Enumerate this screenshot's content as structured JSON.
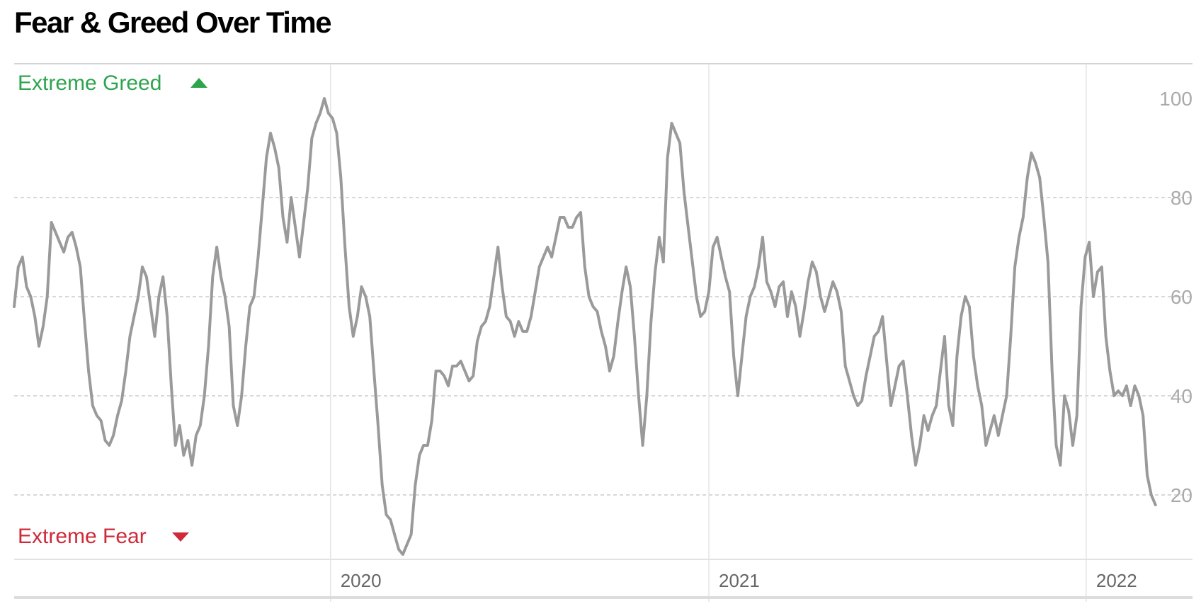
{
  "title": "Fear & Greed Over Time",
  "chart_data": {
    "type": "line",
    "title": "Fear & Greed Over Time",
    "xlabel": "",
    "ylabel": "",
    "ylim": [
      7,
      107
    ],
    "xlim": [
      "2019-03-01",
      "2022-03-01"
    ],
    "y_ticks": [
      "100",
      "80",
      "60",
      "40",
      "20"
    ],
    "x_ticks": [
      {
        "label": "2020",
        "date": "2020-01-01"
      },
      {
        "label": "2021",
        "date": "2021-01-01"
      },
      {
        "label": "2022",
        "date": "2022-01-01"
      }
    ],
    "grid": {
      "horizontal": "dashed",
      "vertical": "solid"
    },
    "annotations": {
      "top": "Extreme Greed",
      "bottom": "Extreme Fear"
    },
    "colors": {
      "line": "#9a9a9a",
      "greed": "#2da44e",
      "fear": "#cf2a3a",
      "grid": "#cccccc",
      "tick": "#aaaaaa"
    },
    "series": [
      {
        "values": [
          [
            "2019-03-01",
            58
          ],
          [
            "2019-03-05",
            66
          ],
          [
            "2019-03-09",
            68
          ],
          [
            "2019-03-13",
            62
          ],
          [
            "2019-03-17",
            60
          ],
          [
            "2019-03-21",
            56
          ],
          [
            "2019-03-25",
            50
          ],
          [
            "2019-03-29",
            54
          ],
          [
            "2019-04-02",
            60
          ],
          [
            "2019-04-06",
            75
          ],
          [
            "2019-04-10",
            73
          ],
          [
            "2019-04-14",
            71
          ],
          [
            "2019-04-18",
            69
          ],
          [
            "2019-04-22",
            72
          ],
          [
            "2019-04-26",
            73
          ],
          [
            "2019-04-30",
            70
          ],
          [
            "2019-05-04",
            66
          ],
          [
            "2019-05-08",
            55
          ],
          [
            "2019-05-12",
            45
          ],
          [
            "2019-05-16",
            38
          ],
          [
            "2019-05-20",
            36
          ],
          [
            "2019-05-24",
            35
          ],
          [
            "2019-05-28",
            31
          ],
          [
            "2019-06-01",
            30
          ],
          [
            "2019-06-05",
            32
          ],
          [
            "2019-06-09",
            36
          ],
          [
            "2019-06-13",
            39
          ],
          [
            "2019-06-17",
            45
          ],
          [
            "2019-06-21",
            52
          ],
          [
            "2019-06-25",
            56
          ],
          [
            "2019-06-29",
            60
          ],
          [
            "2019-07-03",
            66
          ],
          [
            "2019-07-07",
            64
          ],
          [
            "2019-07-11",
            58
          ],
          [
            "2019-07-15",
            52
          ],
          [
            "2019-07-19",
            60
          ],
          [
            "2019-07-23",
            64
          ],
          [
            "2019-07-27",
            56
          ],
          [
            "2019-07-31",
            42
          ],
          [
            "2019-08-04",
            30
          ],
          [
            "2019-08-08",
            34
          ],
          [
            "2019-08-12",
            28
          ],
          [
            "2019-08-16",
            31
          ],
          [
            "2019-08-20",
            26
          ],
          [
            "2019-08-24",
            32
          ],
          [
            "2019-08-28",
            34
          ],
          [
            "2019-09-01",
            40
          ],
          [
            "2019-09-05",
            50
          ],
          [
            "2019-09-09",
            64
          ],
          [
            "2019-09-13",
            70
          ],
          [
            "2019-09-17",
            64
          ],
          [
            "2019-09-21",
            60
          ],
          [
            "2019-09-25",
            54
          ],
          [
            "2019-09-29",
            38
          ],
          [
            "2019-10-03",
            34
          ],
          [
            "2019-10-07",
            40
          ],
          [
            "2019-10-11",
            50
          ],
          [
            "2019-10-15",
            58
          ],
          [
            "2019-10-19",
            60
          ],
          [
            "2019-10-23",
            68
          ],
          [
            "2019-10-27",
            78
          ],
          [
            "2019-10-31",
            88
          ],
          [
            "2019-11-04",
            93
          ],
          [
            "2019-11-08",
            90
          ],
          [
            "2019-11-12",
            86
          ],
          [
            "2019-11-16",
            76
          ],
          [
            "2019-11-20",
            71
          ],
          [
            "2019-11-24",
            80
          ],
          [
            "2019-11-28",
            74
          ],
          [
            "2019-12-02",
            68
          ],
          [
            "2019-12-06",
            75
          ],
          [
            "2019-12-10",
            82
          ],
          [
            "2019-12-14",
            92
          ],
          [
            "2019-12-18",
            95
          ],
          [
            "2019-12-22",
            97
          ],
          [
            "2019-12-26",
            100
          ],
          [
            "2019-12-30",
            97
          ],
          [
            "2020-01-03",
            96
          ],
          [
            "2020-01-07",
            93
          ],
          [
            "2020-01-11",
            84
          ],
          [
            "2020-01-15",
            70
          ],
          [
            "2020-01-19",
            58
          ],
          [
            "2020-01-23",
            52
          ],
          [
            "2020-01-27",
            56
          ],
          [
            "2020-01-31",
            62
          ],
          [
            "2020-02-04",
            60
          ],
          [
            "2020-02-08",
            56
          ],
          [
            "2020-02-12",
            45
          ],
          [
            "2020-02-16",
            34
          ],
          [
            "2020-02-20",
            22
          ],
          [
            "2020-02-24",
            16
          ],
          [
            "2020-02-28",
            15
          ],
          [
            "2020-03-03",
            12
          ],
          [
            "2020-03-07",
            9
          ],
          [
            "2020-03-11",
            8
          ],
          [
            "2020-03-15",
            10
          ],
          [
            "2020-03-19",
            12
          ],
          [
            "2020-03-23",
            22
          ],
          [
            "2020-03-27",
            28
          ],
          [
            "2020-03-31",
            30
          ],
          [
            "2020-04-04",
            30
          ],
          [
            "2020-04-08",
            35
          ],
          [
            "2020-04-12",
            45
          ],
          [
            "2020-04-16",
            45
          ],
          [
            "2020-04-20",
            44
          ],
          [
            "2020-04-24",
            42
          ],
          [
            "2020-04-28",
            46
          ],
          [
            "2020-05-02",
            46
          ],
          [
            "2020-05-06",
            47
          ],
          [
            "2020-05-10",
            45
          ],
          [
            "2020-05-14",
            43
          ],
          [
            "2020-05-18",
            44
          ],
          [
            "2020-05-22",
            51
          ],
          [
            "2020-05-26",
            54
          ],
          [
            "2020-05-30",
            55
          ],
          [
            "2020-06-03",
            58
          ],
          [
            "2020-06-07",
            64
          ],
          [
            "2020-06-11",
            70
          ],
          [
            "2020-06-15",
            62
          ],
          [
            "2020-06-19",
            56
          ],
          [
            "2020-06-23",
            55
          ],
          [
            "2020-06-27",
            52
          ],
          [
            "2020-07-01",
            55
          ],
          [
            "2020-07-05",
            53
          ],
          [
            "2020-07-09",
            53
          ],
          [
            "2020-07-13",
            56
          ],
          [
            "2020-07-17",
            61
          ],
          [
            "2020-07-21",
            66
          ],
          [
            "2020-07-25",
            68
          ],
          [
            "2020-07-29",
            70
          ],
          [
            "2020-08-02",
            68
          ],
          [
            "2020-08-06",
            72
          ],
          [
            "2020-08-10",
            76
          ],
          [
            "2020-08-14",
            76
          ],
          [
            "2020-08-18",
            74
          ],
          [
            "2020-08-22",
            74
          ],
          [
            "2020-08-26",
            76
          ],
          [
            "2020-08-30",
            77
          ],
          [
            "2020-09-03",
            66
          ],
          [
            "2020-09-07",
            60
          ],
          [
            "2020-09-11",
            58
          ],
          [
            "2020-09-15",
            57
          ],
          [
            "2020-09-19",
            53
          ],
          [
            "2020-09-23",
            50
          ],
          [
            "2020-09-27",
            45
          ],
          [
            "2020-10-01",
            48
          ],
          [
            "2020-10-05",
            55
          ],
          [
            "2020-10-09",
            61
          ],
          [
            "2020-10-13",
            66
          ],
          [
            "2020-10-17",
            62
          ],
          [
            "2020-10-21",
            52
          ],
          [
            "2020-10-25",
            40
          ],
          [
            "2020-10-29",
            30
          ],
          [
            "2020-11-02",
            40
          ],
          [
            "2020-11-06",
            55
          ],
          [
            "2020-11-10",
            65
          ],
          [
            "2020-11-14",
            72
          ],
          [
            "2020-11-18",
            67
          ],
          [
            "2020-11-22",
            88
          ],
          [
            "2020-11-26",
            95
          ],
          [
            "2020-11-30",
            93
          ],
          [
            "2020-12-04",
            91
          ],
          [
            "2020-12-08",
            81
          ],
          [
            "2020-12-12",
            74
          ],
          [
            "2020-12-16",
            67
          ],
          [
            "2020-12-20",
            60
          ],
          [
            "2020-12-24",
            56
          ],
          [
            "2020-12-28",
            57
          ],
          [
            "2021-01-01",
            61
          ],
          [
            "2021-01-05",
            70
          ],
          [
            "2021-01-09",
            72
          ],
          [
            "2021-01-13",
            68
          ],
          [
            "2021-01-17",
            64
          ],
          [
            "2021-01-21",
            61
          ],
          [
            "2021-01-25",
            48
          ],
          [
            "2021-01-29",
            40
          ],
          [
            "2021-02-02",
            48
          ],
          [
            "2021-02-06",
            56
          ],
          [
            "2021-02-10",
            60
          ],
          [
            "2021-02-14",
            62
          ],
          [
            "2021-02-18",
            66
          ],
          [
            "2021-02-22",
            72
          ],
          [
            "2021-02-26",
            63
          ],
          [
            "2021-03-02",
            61
          ],
          [
            "2021-03-06",
            58
          ],
          [
            "2021-03-10",
            62
          ],
          [
            "2021-03-14",
            63
          ],
          [
            "2021-03-18",
            56
          ],
          [
            "2021-03-22",
            61
          ],
          [
            "2021-03-26",
            58
          ],
          [
            "2021-03-30",
            52
          ],
          [
            "2021-04-03",
            57
          ],
          [
            "2021-04-07",
            63
          ],
          [
            "2021-04-11",
            67
          ],
          [
            "2021-04-15",
            65
          ],
          [
            "2021-04-19",
            60
          ],
          [
            "2021-04-23",
            57
          ],
          [
            "2021-04-27",
            60
          ],
          [
            "2021-05-01",
            63
          ],
          [
            "2021-05-05",
            61
          ],
          [
            "2021-05-09",
            57
          ],
          [
            "2021-05-13",
            46
          ],
          [
            "2021-05-17",
            43
          ],
          [
            "2021-05-21",
            40
          ],
          [
            "2021-05-25",
            38
          ],
          [
            "2021-05-29",
            39
          ],
          [
            "2021-06-02",
            44
          ],
          [
            "2021-06-06",
            48
          ],
          [
            "2021-06-10",
            52
          ],
          [
            "2021-06-14",
            53
          ],
          [
            "2021-06-18",
            56
          ],
          [
            "2021-06-22",
            47
          ],
          [
            "2021-06-26",
            38
          ],
          [
            "2021-06-30",
            42
          ],
          [
            "2021-07-04",
            46
          ],
          [
            "2021-07-08",
            47
          ],
          [
            "2021-07-12",
            40
          ],
          [
            "2021-07-16",
            32
          ],
          [
            "2021-07-20",
            26
          ],
          [
            "2021-07-24",
            30
          ],
          [
            "2021-07-28",
            36
          ],
          [
            "2021-08-01",
            33
          ],
          [
            "2021-08-05",
            36
          ],
          [
            "2021-08-09",
            38
          ],
          [
            "2021-08-13",
            45
          ],
          [
            "2021-08-17",
            52
          ],
          [
            "2021-08-21",
            38
          ],
          [
            "2021-08-25",
            34
          ],
          [
            "2021-08-29",
            48
          ],
          [
            "2021-09-02",
            56
          ],
          [
            "2021-09-06",
            60
          ],
          [
            "2021-09-10",
            58
          ],
          [
            "2021-09-14",
            48
          ],
          [
            "2021-09-18",
            42
          ],
          [
            "2021-09-22",
            38
          ],
          [
            "2021-09-26",
            30
          ],
          [
            "2021-09-30",
            33
          ],
          [
            "2021-10-04",
            36
          ],
          [
            "2021-10-08",
            32
          ],
          [
            "2021-10-12",
            36
          ],
          [
            "2021-10-16",
            40
          ],
          [
            "2021-10-20",
            52
          ],
          [
            "2021-10-24",
            66
          ],
          [
            "2021-10-28",
            72
          ],
          [
            "2021-11-01",
            76
          ],
          [
            "2021-11-05",
            84
          ],
          [
            "2021-11-09",
            89
          ],
          [
            "2021-11-13",
            87
          ],
          [
            "2021-11-17",
            84
          ],
          [
            "2021-11-21",
            76
          ],
          [
            "2021-11-25",
            67
          ],
          [
            "2021-11-29",
            45
          ],
          [
            "2021-12-03",
            30
          ],
          [
            "2021-12-07",
            26
          ],
          [
            "2021-12-11",
            40
          ],
          [
            "2021-12-15",
            37
          ],
          [
            "2021-12-19",
            30
          ],
          [
            "2021-12-23",
            36
          ],
          [
            "2021-12-27",
            58
          ],
          [
            "2021-12-31",
            68
          ],
          [
            "2022-01-04",
            71
          ],
          [
            "2022-01-08",
            60
          ],
          [
            "2022-01-12",
            65
          ],
          [
            "2022-01-16",
            66
          ],
          [
            "2022-01-20",
            52
          ],
          [
            "2022-01-24",
            45
          ],
          [
            "2022-01-28",
            40
          ],
          [
            "2022-02-01",
            41
          ],
          [
            "2022-02-05",
            40
          ],
          [
            "2022-02-09",
            42
          ],
          [
            "2022-02-13",
            38
          ],
          [
            "2022-02-17",
            42
          ],
          [
            "2022-02-21",
            40
          ],
          [
            "2022-02-25",
            36
          ],
          [
            "2022-03-01",
            24
          ],
          [
            "2022-03-05",
            20
          ],
          [
            "2022-03-09",
            18
          ]
        ]
      }
    ]
  }
}
